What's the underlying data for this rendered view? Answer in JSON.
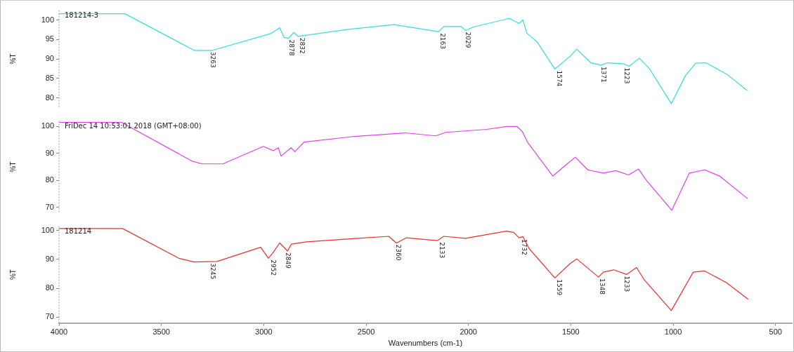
{
  "chart_data": [
    {
      "type": "line",
      "ylabel": "%T",
      "xlim": [
        4000,
        420
      ],
      "xticks": [
        4000,
        3500,
        3000,
        2500,
        2000,
        1500,
        1000,
        500
      ],
      "ylim": [
        77.5,
        102.5
      ],
      "yticks": [
        80,
        85,
        90,
        95,
        100
      ],
      "tick_labels": "y",
      "grid": false,
      "legend": false,
      "annotations": [
        "181214-3",
        {
          "text": "3263",
          "x": 3252,
          "y": 92.2
        },
        {
          "text": "2878",
          "x": 2865,
          "y": 95.3
        },
        {
          "text": "2832",
          "x": 2815,
          "y": 95.8
        },
        {
          "text": "2163",
          "x": 2128,
          "y": 97.0
        },
        {
          "text": "2029",
          "x": 2005,
          "y": 97.3
        },
        {
          "text": "1574",
          "x": 1559,
          "y": 87.4
        },
        {
          "text": "1371",
          "x": 1341,
          "y": 88.4
        },
        {
          "text": "1223",
          "x": 1228,
          "y": 88.1
        }
      ],
      "series": [
        {
          "color": "#33dede",
          "x": [
            4000,
            3678,
            3340,
            3250,
            2966,
            2922,
            2901,
            2880,
            2853,
            2833,
            2600,
            2364,
            2146,
            2121,
            2035,
            2014,
            1976,
            1800,
            1753,
            1734,
            1715,
            1665,
            1578,
            1503,
            1471,
            1402,
            1353,
            1320,
            1241,
            1215,
            1165,
            1115,
            1009,
            940,
            890,
            840,
            739,
            639
          ],
          "values": [
            101.6,
            101.6,
            92.2,
            92.2,
            96.5,
            98,
            95.5,
            95.3,
            96.8,
            95.8,
            97.5,
            98.8,
            97.0,
            98.3,
            98.3,
            97.3,
            98.2,
            100.4,
            99.1,
            100,
            96.6,
            94.4,
            87.4,
            90.7,
            92.5,
            89,
            88.4,
            89,
            88.7,
            88.1,
            90.2,
            87.4,
            78.5,
            85.7,
            88.9,
            89,
            86.1,
            81.9
          ]
        }
      ]
    },
    {
      "type": "line",
      "ylabel": "%T",
      "xlim": [
        4000,
        420
      ],
      "xticks": [
        4000,
        3500,
        3000,
        2500,
        2000,
        1500,
        1000,
        500
      ],
      "ylim": [
        68,
        102
      ],
      "yticks": [
        70,
        80,
        90,
        100
      ],
      "tick_labels": "y",
      "grid": false,
      "legend": false,
      "annotations": [
        "FriDec 14 10:53:01 2018 (GMT+08:00)"
      ],
      "series": [
        {
          "color": "#e040e8",
          "x": [
            4000,
            3695,
            3349,
            3300,
            3200,
            3002,
            2953,
            2929,
            2915,
            2867,
            2848,
            2803,
            2556,
            2310,
            2160,
            2111,
            1912,
            1811,
            1763,
            1737,
            1712,
            1588,
            1515,
            1478,
            1417,
            1342,
            1280,
            1218,
            1169,
            1131,
            1007,
            921,
            846,
            773,
            636
          ],
          "values": [
            101.5,
            101.5,
            87.1,
            86.1,
            86.1,
            92.6,
            91,
            92.1,
            89,
            92.1,
            90.6,
            94.2,
            96.3,
            97.6,
            96.5,
            97.8,
            98.9,
            100,
            100,
            98.1,
            94.2,
            81.6,
            86.3,
            88.6,
            83.9,
            82.7,
            83.6,
            82,
            84.2,
            80,
            68.9,
            82.7,
            83.9,
            81.6,
            73.2
          ]
        }
      ]
    },
    {
      "type": "line",
      "ylabel": "%T",
      "xlabel": "Wavenumbers (cm-1)",
      "xlim": [
        4000,
        420
      ],
      "xticks": [
        4000,
        3500,
        3000,
        2500,
        2000,
        1500,
        1000,
        500
      ],
      "ylim": [
        68,
        101.5
      ],
      "yticks": [
        70,
        80,
        90,
        100
      ],
      "grid": false,
      "legend": false,
      "annotations": [
        "181214",
        {
          "text": "3245",
          "x": 3249,
          "y": 89.2
        },
        {
          "text": "2952",
          "x": 2956,
          "y": 90.4
        },
        {
          "text": "2849",
          "x": 2884,
          "y": 92.9
        },
        {
          "text": "2360",
          "x": 2346,
          "y": 95.7
        },
        {
          "text": "2133",
          "x": 2131,
          "y": 96.5
        },
        {
          "text": "1732",
          "x": 1730,
          "y": 97.5
        },
        {
          "text": "1559",
          "x": 1559,
          "y": 83.6
        },
        {
          "text": "1348",
          "x": 1348,
          "y": 83.9
        },
        {
          "text": "1233",
          "x": 1230,
          "y": 84.8
        }
      ],
      "series": [
        {
          "color": "#e83030",
          "x": [
            4000,
            3690,
            3415,
            3341,
            3228,
            3015,
            2977,
            2953,
            2922,
            2884,
            2865,
            2790,
            2540,
            2389,
            2353,
            2346,
            2303,
            2152,
            2121,
            2014,
            1815,
            1778,
            1753,
            1734,
            1703,
            1578,
            1503,
            1471,
            1365,
            1341,
            1290,
            1228,
            1179,
            1141,
            1009,
            902,
            846,
            739,
            634
          ],
          "values": [
            100.7,
            100.7,
            90.4,
            89.1,
            89.3,
            94.2,
            90.4,
            92.5,
            95.7,
            92.9,
            95.3,
            96.1,
            97.3,
            98,
            95.7,
            95.9,
            97.5,
            96.5,
            98,
            97.3,
            99.8,
            99.3,
            97.5,
            97.9,
            93.7,
            83.6,
            88.6,
            90.2,
            83.9,
            85.6,
            86.4,
            84.8,
            87.2,
            82.9,
            72.3,
            85.6,
            86,
            81.9,
            76.2
          ]
        }
      ]
    }
  ]
}
